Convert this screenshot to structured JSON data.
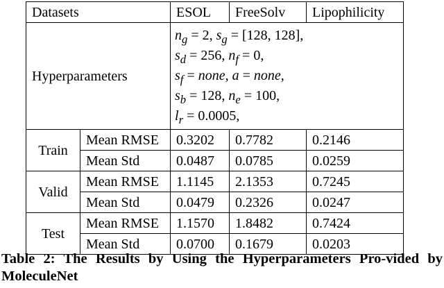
{
  "table": {
    "header": [
      "Datasets",
      "ESOL",
      "FreeSolv",
      "Lipophilicity"
    ],
    "hyperparameters": {
      "label": "Hyperparameters",
      "lines": [
        "n_g = 2, s_g = [128, 128],",
        "s_d = 256, n_f = 0,",
        "s_f = none, a = none,",
        "s_b = 128, n_e = 100,",
        "l_r = 0.0005,"
      ]
    },
    "groups": [
      {
        "split": "Train",
        "rows": [
          {
            "metric": "Mean RMSE",
            "values": [
              "0.3202",
              "0.7782",
              "0.2146"
            ]
          },
          {
            "metric": "Mean Std",
            "values": [
              "0.0487",
              "0.0785",
              "0.0259"
            ]
          }
        ]
      },
      {
        "split": "Valid",
        "rows": [
          {
            "metric": "Mean RMSE",
            "values": [
              "1.1145",
              "2.1353",
              "0.7245"
            ]
          },
          {
            "metric": "Mean Std",
            "values": [
              "0.0479",
              "0.2326",
              "0.0247"
            ]
          }
        ]
      },
      {
        "split": "Test",
        "rows": [
          {
            "metric": "Mean RMSE",
            "values": [
              "1.1570",
              "1.8482",
              "0.7424"
            ]
          },
          {
            "metric": "Mean Std",
            "values": [
              "0.0700",
              "0.1679",
              "0.0203"
            ]
          }
        ]
      }
    ]
  },
  "caption": "Table 2: The Results by Using the Hyperparameters Pro-vided by MoleculeNet"
}
